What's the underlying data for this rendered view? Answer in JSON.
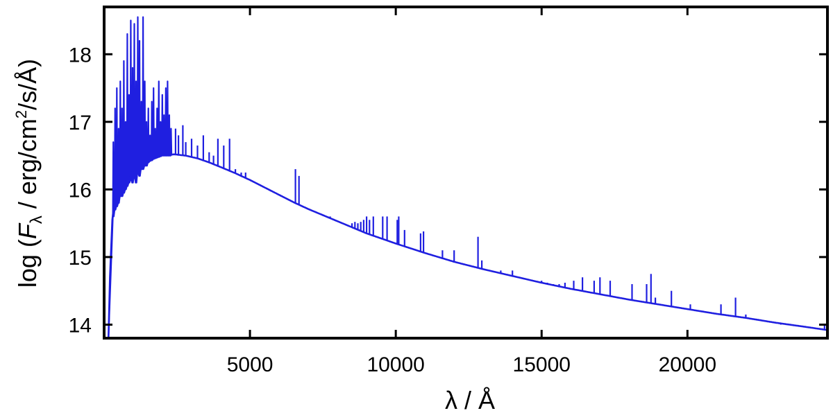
{
  "chart_data": {
    "type": "line",
    "title": "",
    "xlabel": "λ / Å",
    "ylabel": "log (F_λ / erg/cm²/s/Å)",
    "ylabel_parts": {
      "prefix": "log (",
      "symbol": "F",
      "subscript": "λ",
      "unit": " / erg/cm",
      "power": "2",
      "suffix": "/s/Å)"
    },
    "xlim": [
      0,
      24800
    ],
    "ylim": [
      13.8,
      18.7
    ],
    "xticks": [
      5000,
      10000,
      15000,
      20000
    ],
    "xtick_labels": [
      "5000",
      "10000",
      "15000",
      "20000"
    ],
    "yticks": [
      14,
      15,
      16,
      17,
      18
    ],
    "ytick_labels": [
      "14",
      "15",
      "16",
      "17",
      "18"
    ],
    "grid": false,
    "series_color": "#1f1fe0",
    "series": [
      {
        "continuum": {
          "x": [
            150,
            200,
            280,
            380,
            500,
            650,
            800,
            1000,
            1300,
            1600,
            2000,
            2400,
            2800,
            3200,
            3600,
            4000,
            4500,
            5000,
            5500,
            6000,
            6500,
            7000,
            7500,
            8000,
            9000,
            10000,
            11000,
            12000,
            13000,
            14000,
            15000,
            16000,
            17000,
            18000,
            19000,
            20000,
            21000,
            22000,
            23000,
            24000,
            24800
          ],
          "y": [
            13.82,
            14.7,
            15.55,
            15.95,
            16.05,
            16.12,
            16.18,
            16.27,
            16.38,
            16.45,
            16.5,
            16.52,
            16.5,
            16.46,
            16.4,
            16.33,
            16.24,
            16.14,
            16.03,
            15.92,
            15.81,
            15.71,
            15.62,
            15.53,
            15.35,
            15.2,
            15.06,
            14.93,
            14.82,
            14.72,
            14.62,
            14.53,
            14.45,
            14.37,
            14.3,
            14.23,
            14.16,
            14.1,
            14.03,
            13.97,
            13.92
          ]
        },
        "uv_lines": {
          "x": [
            300,
            360,
            420,
            480,
            540,
            600,
            660,
            720,
            780,
            840,
            900,
            960,
            1020,
            1080,
            1140,
            1200,
            1260,
            1320,
            1380,
            1440,
            1500,
            1560,
            1620,
            1680,
            1740,
            1800,
            1860,
            1920,
            1980,
            2040,
            2100,
            2160,
            2220,
            2280
          ],
          "peak": [
            16.7,
            17.2,
            17.5,
            16.9,
            17.6,
            17.2,
            17.9,
            17.0,
            18.3,
            17.4,
            18.5,
            17.8,
            18.45,
            17.6,
            18.55,
            18.2,
            17.3,
            18.55,
            17.6,
            17.0,
            17.2,
            16.8,
            17.3,
            17.5,
            16.9,
            17.2,
            17.6,
            17.0,
            17.4,
            17.1,
            17.5,
            17.6,
            17.1,
            16.9
          ],
          "trough": [
            15.6,
            15.7,
            15.75,
            15.8,
            15.9,
            15.9,
            15.95,
            16.0,
            16.05,
            16.1,
            16.15,
            16.1,
            16.2,
            16.1,
            16.25,
            16.2,
            16.3,
            16.3,
            16.35,
            16.35,
            16.4,
            16.42,
            16.43,
            16.45,
            16.46,
            16.47,
            16.48,
            16.49,
            16.5,
            16.5,
            16.5,
            16.5,
            16.5,
            16.5
          ]
        },
        "emission_lines": {
          "x": [
            2450,
            2550,
            2700,
            2800,
            3000,
            3200,
            3400,
            3600,
            3750,
            3900,
            4100,
            4300,
            4500,
            4700,
            4850,
            6560,
            6680,
            7750,
            8500,
            8600,
            8700,
            8800,
            8900,
            9000,
            9100,
            9230,
            9550,
            9700,
            10050,
            10100,
            10300,
            10850,
            10950,
            11600,
            12000,
            12820,
            12950,
            13600,
            14000,
            15000,
            15200,
            15400,
            15600,
            15800,
            16100,
            16400,
            16800,
            17000,
            17350,
            18100,
            18600,
            18750,
            18900,
            19450,
            20100,
            20600,
            21150,
            21650,
            22000,
            23200,
            24700
          ],
          "peak": [
            16.9,
            16.8,
            16.95,
            16.7,
            16.75,
            16.65,
            16.8,
            16.55,
            16.5,
            16.75,
            16.65,
            16.75,
            16.3,
            16.25,
            16.25,
            16.3,
            16.2,
            15.6,
            15.5,
            15.52,
            15.5,
            15.52,
            15.55,
            15.6,
            15.55,
            15.6,
            15.6,
            15.6,
            15.55,
            15.6,
            15.4,
            15.35,
            15.38,
            15.1,
            15.1,
            15.3,
            14.95,
            14.8,
            14.8,
            14.65,
            14.62,
            14.6,
            14.6,
            14.62,
            14.65,
            14.7,
            14.65,
            14.7,
            14.65,
            14.6,
            14.6,
            14.75,
            14.4,
            14.5,
            14.3,
            14.2,
            14.3,
            14.4,
            14.15,
            14.0,
            14.0
          ]
        }
      }
    ]
  }
}
